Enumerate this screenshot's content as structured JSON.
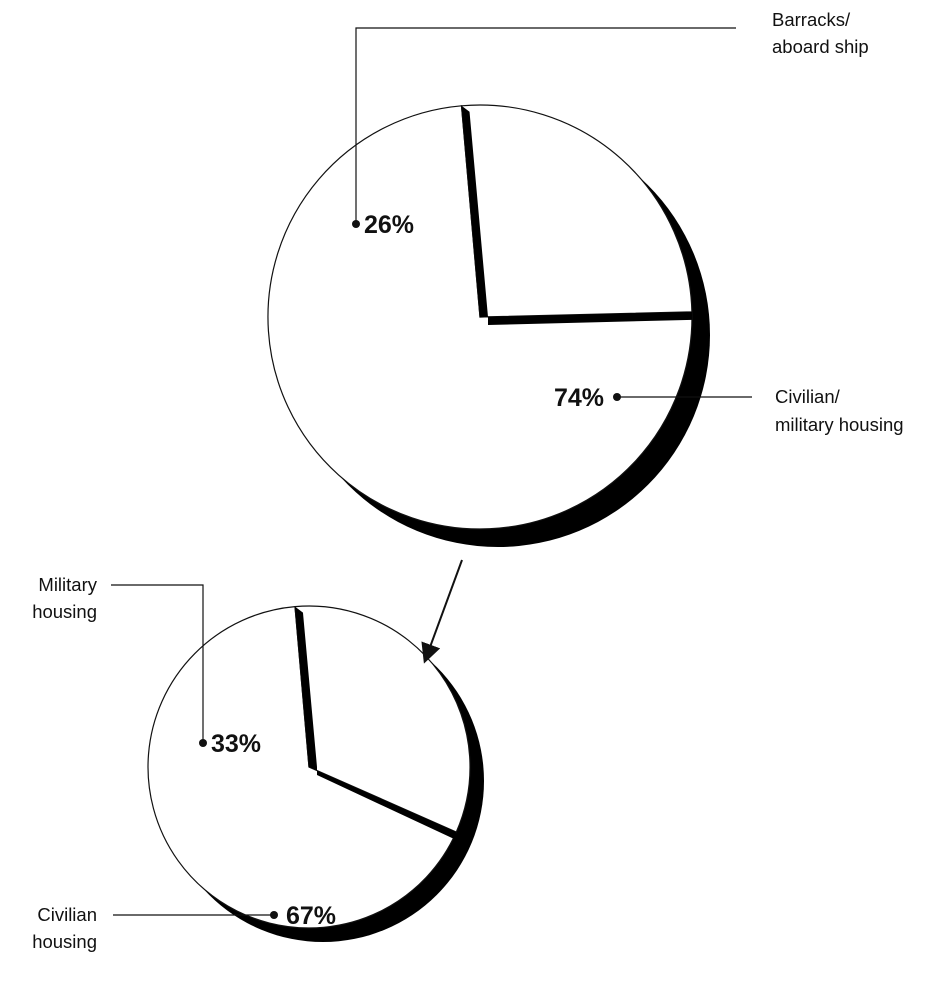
{
  "chart_data": [
    {
      "type": "pie",
      "title": "",
      "slices": [
        {
          "name": "Barracks/ aboard ship",
          "label_lines": [
            "Barracks/",
            "aboard ship"
          ],
          "value": 26,
          "value_label": "26%"
        },
        {
          "name": "Civilian/ military housing",
          "label_lines": [
            "Civilian/",
            "military housing"
          ],
          "value": 74,
          "value_label": "74%"
        }
      ]
    },
    {
      "type": "pie",
      "title": "",
      "breakdown_of": "Civilian/ military housing",
      "slices": [
        {
          "name": "Military housing",
          "label_lines": [
            "Military",
            "housing"
          ],
          "value": 33,
          "value_label": "33%"
        },
        {
          "name": "Civilian housing",
          "label_lines": [
            "Civilian",
            "housing"
          ],
          "value": 67,
          "value_label": "67%"
        }
      ]
    }
  ],
  "colors": {
    "fill": "#ffffff",
    "outline": "#111111",
    "shadow": "#000000"
  }
}
